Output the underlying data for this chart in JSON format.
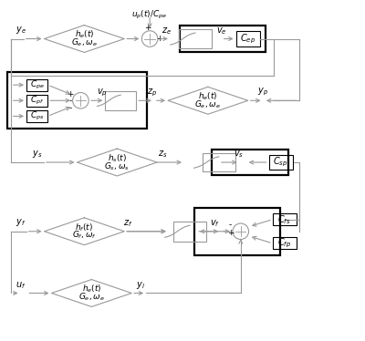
{
  "bg_color": "#ffffff",
  "lc": "#999999",
  "tc": "#000000",
  "figsize": [
    4.0,
    3.74
  ],
  "dpi": 100,
  "xlim": [
    0,
    10
  ],
  "ylim": [
    0,
    9.35
  ],
  "rows": {
    "y1": 8.3,
    "y2": 6.6,
    "y3": 4.9,
    "y4": 3.0,
    "y5": 1.3
  }
}
